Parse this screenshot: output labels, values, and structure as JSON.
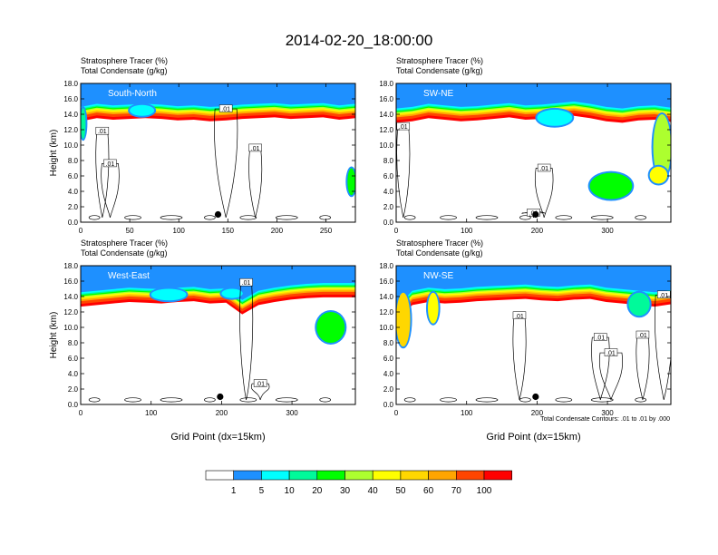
{
  "title": "2014-02-20_18:00:00",
  "footer_note": "Total Condensate Contours: .01 to .01 by .000",
  "x_axis_label": "Grid Point (dx=15km)",
  "colors": {
    "palette": [
      "#ffffff",
      "#1e90ff",
      "#00bfff",
      "#00ffff",
      "#00fa9a",
      "#00ff00",
      "#adff2f",
      "#ffff00",
      "#ffd700",
      "#ffa500",
      "#ff4500",
      "#ff0000"
    ],
    "contour": "#000000"
  },
  "chart_data": [
    {
      "type": "heatmap",
      "panel": "South-North",
      "title_lines": [
        "Stratosphere Tracer   (%)",
        "Total Condensate   (g/kg)"
      ],
      "ylabel": "Height (km)",
      "xlabel": "",
      "xlim": [
        0,
        280
      ],
      "xticks": [
        "0",
        "50",
        "100",
        "150",
        "200",
        "250"
      ],
      "ylim": [
        0,
        18
      ],
      "yticks": [
        "0.0",
        "2.0",
        "4.0",
        "6.0",
        "8.0",
        "10.0",
        "12.0",
        "14.0",
        "16.0",
        "18.0"
      ],
      "tracer_base_km": [
        14.4,
        14.8,
        14.6,
        14.7,
        14.8,
        14.7,
        14.5,
        14.6,
        14.4,
        14.5,
        14.7,
        14.8,
        14.9,
        14.7,
        14.8,
        14.9,
        14.6,
        14.8
      ],
      "tracer_patches": [
        {
          "x": [
            0,
            5
          ],
          "z": [
            10.8,
            14.8
          ],
          "pct": 12
        },
        {
          "x": [
            50,
            75
          ],
          "z": [
            13.8,
            15.2
          ],
          "pct": 8
        },
        {
          "x": [
            272,
            280
          ],
          "z": [
            3.5,
            7.0
          ],
          "pct": 25
        }
      ],
      "contour_labels": [
        {
          "text": ".01",
          "x": 22,
          "z": 11.8
        },
        {
          "text": ".01",
          "x": 30,
          "z": 7.6
        },
        {
          "text": ".01",
          "x": 148,
          "z": 14.7
        },
        {
          "text": ".01",
          "x": 178,
          "z": 9.6
        }
      ],
      "marker": {
        "x": 140,
        "z": 1.0
      }
    },
    {
      "type": "heatmap",
      "panel": "SW-NE",
      "title_lines": [
        "Stratosphere Tracer   (%)",
        "Total Condensate   (g/kg)"
      ],
      "ylabel": "",
      "xlabel": "",
      "xlim": [
        0,
        390
      ],
      "xticks": [
        "0",
        "100",
        "200",
        "300"
      ],
      "ylim": [
        0,
        18
      ],
      "yticks": [
        "0.0",
        "2.0",
        "4.0",
        "6.0",
        "8.0",
        "10.0",
        "12.0",
        "14.0",
        "16.0",
        "18.0"
      ],
      "tracer_base_km": [
        14.2,
        14.4,
        14.8,
        14.6,
        14.4,
        14.5,
        14.7,
        14.9,
        14.6,
        14.7,
        14.9,
        15.1,
        14.8,
        14.4,
        14.2,
        14.5,
        14.6,
        14.3
      ],
      "tracer_patches": [
        {
          "x": [
            200,
            250
          ],
          "z": [
            12.5,
            14.6
          ],
          "pct": 8
        },
        {
          "x": [
            365,
            390
          ],
          "z": [
            5.5,
            14.0
          ],
          "pct": 35
        },
        {
          "x": [
            275,
            335
          ],
          "z": [
            3.0,
            6.4
          ],
          "pct": 28
        },
        {
          "x": [
            360,
            385
          ],
          "z": [
            5.0,
            7.2
          ],
          "pct": 40
        }
      ],
      "contour_labels": [
        {
          "text": ".01",
          "x": 10,
          "z": 12.4
        },
        {
          "text": ".01",
          "x": 210,
          "z": 7.0
        },
        {
          "text": ".01",
          "x": 195,
          "z": 1.2
        }
      ],
      "marker": {
        "x": 198,
        "z": 1.0
      }
    },
    {
      "type": "heatmap",
      "panel": "West-East",
      "title_lines": [
        "Stratosphere Tracer   (%)",
        "Total Condensate   (g/kg)"
      ],
      "ylabel": "Height (km)",
      "xlabel": "Grid Point (dx=15km)",
      "xlim": [
        0,
        390
      ],
      "xticks": [
        "0",
        "100",
        "200",
        "300"
      ],
      "ylim": [
        0,
        18
      ],
      "yticks": [
        "0.0",
        "2.0",
        "4.0",
        "6.0",
        "8.0",
        "10.0",
        "12.0",
        "14.0",
        "16.0",
        "18.0"
      ],
      "tracer_base_km": [
        14.0,
        14.2,
        14.4,
        14.6,
        14.5,
        14.4,
        14.6,
        14.7,
        14.4,
        14.5,
        13.0,
        14.2,
        14.6,
        14.9,
        15.1,
        15.2,
        15.2,
        15.2
      ],
      "tracer_patches": [
        {
          "x": [
            100,
            150
          ],
          "z": [
            13.5,
            15.0
          ],
          "pct": 8
        },
        {
          "x": [
            200,
            230
          ],
          "z": [
            13.8,
            15.0
          ],
          "pct": 8
        },
        {
          "x": [
            335,
            375
          ],
          "z": [
            8.0,
            12.0
          ],
          "pct": 25
        }
      ],
      "contour_labels": [
        {
          "text": ".01",
          "x": 235,
          "z": 15.8
        },
        {
          "text": ".01",
          "x": 255,
          "z": 2.7
        }
      ],
      "marker": {
        "x": 198,
        "z": 1.0
      }
    },
    {
      "type": "heatmap",
      "panel": "NW-SE",
      "title_lines": [
        "Stratosphere Tracer   (%)",
        "Total Condensate   (g/kg)"
      ],
      "ylabel": "",
      "xlabel": "Grid Point (dx=15km)",
      "xlim": [
        0,
        390
      ],
      "xticks": [
        "0",
        "100",
        "200",
        "300"
      ],
      "ylim": [
        0,
        18
      ],
      "yticks": [
        "0.0",
        "2.0",
        "4.0",
        "6.0",
        "8.0",
        "10.0",
        "12.0",
        "14.0",
        "16.0",
        "18.0"
      ],
      "tracer_base_km": [
        12.0,
        14.2,
        14.6,
        14.4,
        14.5,
        14.7,
        14.8,
        14.9,
        15.0,
        14.8,
        14.7,
        14.9,
        15.0,
        14.6,
        14.4,
        14.2,
        14.0,
        14.3
      ],
      "tracer_patches": [
        {
          "x": [
            0,
            20
          ],
          "z": [
            7.5,
            14.5
          ],
          "pct": 50
        },
        {
          "x": [
            45,
            60
          ],
          "z": [
            10.5,
            14.5
          ],
          "pct": 45
        },
        {
          "x": [
            330,
            360
          ],
          "z": [
            11.5,
            14.5
          ],
          "pct": 12
        }
      ],
      "contour_labels": [
        {
          "text": ".01",
          "x": 175,
          "z": 11.5
        },
        {
          "text": ".01",
          "x": 290,
          "z": 8.7
        },
        {
          "text": ".01",
          "x": 305,
          "z": 6.7
        },
        {
          "text": ".01",
          "x": 350,
          "z": 9.0
        },
        {
          "text": ".01",
          "x": 380,
          "z": 14.2
        }
      ],
      "marker": {
        "x": 198,
        "z": 1.0
      }
    }
  ],
  "colorbar": {
    "levels": [
      0,
      1,
      5,
      10,
      20,
      30,
      40,
      50,
      60,
      70,
      100
    ],
    "labels": [
      "1",
      "5",
      "10",
      "20",
      "30",
      "40",
      "50",
      "60",
      "70",
      "100"
    ],
    "colors": [
      "#ffffff",
      "#1e90ff",
      "#00ffff",
      "#00fa9a",
      "#00ff00",
      "#adff2f",
      "#ffff00",
      "#ffd700",
      "#ffa500",
      "#ff4500",
      "#ff0000"
    ]
  }
}
